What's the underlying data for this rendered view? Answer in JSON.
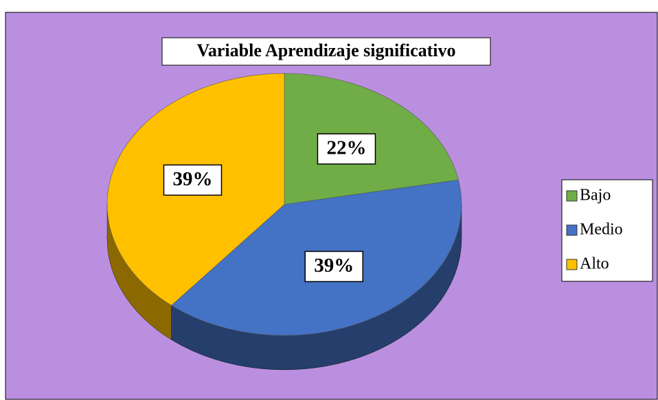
{
  "chart_data": {
    "type": "pie",
    "title": "Variable Aprendizaje significativo",
    "categories": [
      "Bajo",
      "Medio",
      "Alto"
    ],
    "values": [
      22,
      39,
      39
    ],
    "value_labels": [
      "22%",
      "39%",
      "39%"
    ],
    "colors": [
      "#70ad47",
      "#4472c4",
      "#ffc000"
    ],
    "legend": "right"
  }
}
